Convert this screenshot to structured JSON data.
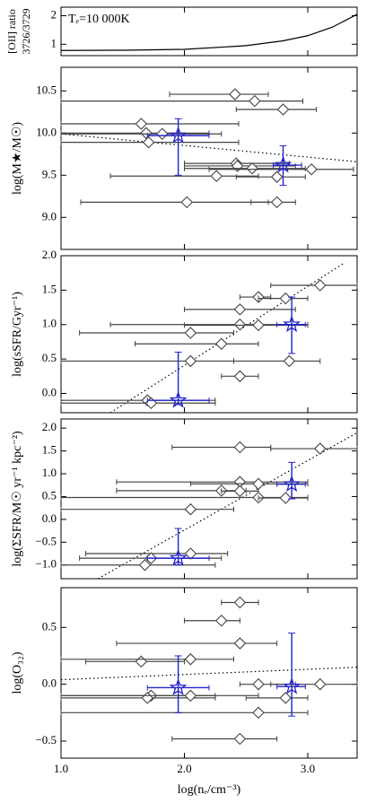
{
  "chart_data": [
    {
      "type": "line",
      "ylabel": [
        "[OII] ratio",
        "3726/3729"
      ],
      "annotation": "Tₑ=10 000K",
      "xlim": [
        1.0,
        3.4
      ],
      "xticks": [
        1,
        2,
        3
      ],
      "ylim": [
        0.6,
        2.3
      ],
      "yticks": [
        1,
        2
      ],
      "color": "#000000",
      "x": [
        1.0,
        1.5,
        2.0,
        2.5,
        2.8,
        3.0,
        3.2,
        3.4
      ],
      "values": [
        0.78,
        0.79,
        0.82,
        0.95,
        1.12,
        1.3,
        1.6,
        2.05
      ]
    },
    {
      "type": "scatter",
      "ylabel": "log(M★/M☉)",
      "xlim": [
        1.0,
        3.4
      ],
      "xticks": [
        1,
        2,
        3
      ],
      "ylim": [
        8.62,
        10.78
      ],
      "yticks": [
        {
          "value": 9,
          "label": "9.0"
        },
        9.5,
        {
          "value": 10,
          "label": "10.0"
        },
        10.5
      ],
      "points": {
        "color": "#444444",
        "x": [
          2.41,
          2.57,
          2.8,
          1.65,
          1.69,
          1.82,
          1.71,
          2.42,
          2.43,
          2.55,
          3.03,
          2.26,
          2.75,
          2.02,
          2.75
        ],
        "values": [
          10.46,
          10.38,
          10.28,
          10.11,
          10.0,
          9.99,
          9.89,
          9.64,
          9.61,
          9.58,
          9.57,
          9.49,
          9.48,
          9.18,
          9.18
        ],
        "xmin": [
          1.88,
          1.0,
          2.42,
          1.0,
          1.0,
          1.0,
          1.0,
          2.0,
          2.0,
          2.0,
          2.2,
          1.4,
          2.42,
          1.16,
          2.54
        ],
        "xmax": [
          2.68,
          2.96,
          3.07,
          2.44,
          2.2,
          2.3,
          2.44,
          2.85,
          2.9,
          2.98,
          3.37,
          2.6,
          2.98,
          2.68,
          2.9
        ]
      },
      "stars": {
        "color": "#2222cc",
        "x": [
          1.95,
          2.8
        ],
        "values": [
          9.97,
          9.62
        ],
        "xmin": [
          1.7,
          2.72
        ],
        "xmax": [
          2.2,
          2.95
        ],
        "ymin": [
          9.5,
          9.38
        ],
        "ymax": [
          10.17,
          9.85
        ]
      },
      "fit": {
        "color": "#000000",
        "x": [
          1.0,
          3.4
        ],
        "values": [
          9.99,
          9.66
        ]
      }
    },
    {
      "type": "scatter",
      "ylabel": "log(sSFR/Gyr⁻¹)",
      "xlim": [
        1.0,
        3.4
      ],
      "xticks": [
        1,
        2,
        3
      ],
      "ylim": [
        -0.28,
        2.0
      ],
      "yticks": [
        {
          "value": 0,
          "label": "0.0"
        },
        0.5,
        {
          "value": 1,
          "label": "1.0"
        },
        1.5,
        {
          "value": 2,
          "label": "2.0"
        }
      ],
      "points": {
        "color": "#444444",
        "x": [
          3.1,
          2.6,
          2.82,
          2.45,
          2.45,
          2.6,
          2.05,
          2.3,
          2.05,
          2.85,
          2.45,
          1.7,
          1.73
        ],
        "values": [
          1.57,
          1.4,
          1.38,
          1.22,
          1.0,
          0.99,
          0.88,
          0.72,
          0.47,
          0.47,
          0.25,
          -0.1,
          -0.14
        ],
        "xmin": [
          2.7,
          2.45,
          2.6,
          2.0,
          1.4,
          2.0,
          1.15,
          1.6,
          1.0,
          2.4,
          2.3,
          1.0,
          1.0
        ],
        "xmax": [
          3.4,
          2.7,
          3.0,
          2.9,
          3.0,
          3.0,
          2.4,
          2.6,
          2.4,
          3.1,
          2.6,
          2.25,
          2.25
        ]
      },
      "stars": {
        "color": "#2222cc",
        "x": [
          1.95,
          2.87
        ],
        "values": [
          -0.1,
          1.0
        ],
        "xmin": [
          1.7,
          2.75
        ],
        "xmax": [
          2.2,
          2.98
        ],
        "ymin": [
          -0.16,
          0.58
        ],
        "ymax": [
          0.6,
          1.4
        ]
      },
      "fit": {
        "color": "#000000",
        "x": [
          1.4,
          3.3
        ],
        "values": [
          -0.28,
          1.9
        ]
      }
    },
    {
      "type": "scatter",
      "ylabel": "log(ΣSFR/M☉ yr⁻¹ kpc⁻²)",
      "xlim": [
        1.0,
        3.4
      ],
      "xticks": [
        1,
        2,
        3
      ],
      "ylim": [
        -1.3,
        2.2
      ],
      "yticks": [
        {
          "value": -1,
          "label": "−1.0"
        },
        {
          "value": -0.5,
          "label": "−0.5"
        },
        {
          "value": 0,
          "label": "0.0"
        },
        0.5,
        {
          "value": 1,
          "label": "1.0"
        },
        1.5,
        {
          "value": 2,
          "label": "2.0"
        }
      ],
      "points": {
        "color": "#444444",
        "x": [
          2.45,
          3.1,
          2.45,
          2.6,
          2.3,
          2.45,
          2.6,
          2.82,
          2.05,
          2.05,
          1.73,
          1.68
        ],
        "values": [
          1.58,
          1.55,
          0.82,
          0.78,
          0.63,
          0.62,
          0.48,
          0.47,
          0.22,
          -0.75,
          -0.85,
          -1.0
        ],
        "xmin": [
          1.9,
          2.7,
          1.45,
          2.05,
          1.45,
          2.3,
          1.0,
          2.6,
          1.0,
          1.2,
          1.15,
          1.0
        ],
        "xmax": [
          2.7,
          3.4,
          3.0,
          3.0,
          2.5,
          2.6,
          3.0,
          3.0,
          2.4,
          2.35,
          2.3,
          2.25
        ]
      },
      "stars": {
        "color": "#2222cc",
        "x": [
          1.95,
          2.87
        ],
        "values": [
          -0.85,
          0.77
        ],
        "xmin": [
          1.7,
          2.75
        ],
        "xmax": [
          2.2,
          2.98
        ],
        "ymin": [
          -1.0,
          0.45
        ],
        "ymax": [
          -0.2,
          1.25
        ]
      },
      "fit": {
        "color": "#000000",
        "x": [
          1.3,
          3.4
        ],
        "values": [
          -1.3,
          1.9
        ]
      }
    },
    {
      "type": "scatter",
      "ylabel": "log(O₃₂)",
      "xlabel": "log(nₑ/cm⁻³)",
      "xlim": [
        1.0,
        3.4
      ],
      "xticks": [
        {
          "value": 1,
          "label": "1.0"
        },
        {
          "value": 2,
          "label": "2.0"
        },
        {
          "value": 3,
          "label": "3.0"
        }
      ],
      "ylim": [
        -0.65,
        0.85
      ],
      "yticks": [
        {
          "value": -0.5,
          "label": "−0.5"
        },
        {
          "value": 0,
          "label": "0.0"
        },
        0.5
      ],
      "points": {
        "color": "#444444",
        "x": [
          2.45,
          2.3,
          2.45,
          1.65,
          2.05,
          2.6,
          3.1,
          1.73,
          1.7,
          2.05,
          2.82,
          2.6,
          2.45
        ],
        "values": [
          0.72,
          0.56,
          0.36,
          0.2,
          0.22,
          0.0,
          0.0,
          -0.1,
          -0.12,
          -0.1,
          -0.12,
          -0.25,
          -0.48
        ],
        "xmin": [
          2.3,
          2.0,
          1.45,
          1.2,
          1.0,
          2.45,
          2.7,
          1.0,
          1.0,
          1.0,
          2.5,
          1.0,
          1.9
        ],
        "xmax": [
          2.6,
          2.45,
          2.75,
          2.0,
          2.4,
          2.9,
          3.4,
          2.25,
          2.25,
          2.6,
          3.0,
          3.0,
          2.75
        ]
      },
      "stars": {
        "color": "#2222cc",
        "x": [
          1.95,
          2.87
        ],
        "values": [
          -0.03,
          -0.02
        ],
        "xmin": [
          1.7,
          2.75
        ],
        "xmax": [
          2.2,
          2.98
        ],
        "ymin": [
          -0.25,
          -0.28
        ],
        "ymax": [
          0.25,
          0.45
        ]
      },
      "fit": {
        "color": "#000000",
        "x": [
          1.0,
          3.4
        ],
        "values": [
          0.04,
          0.15
        ]
      }
    }
  ]
}
